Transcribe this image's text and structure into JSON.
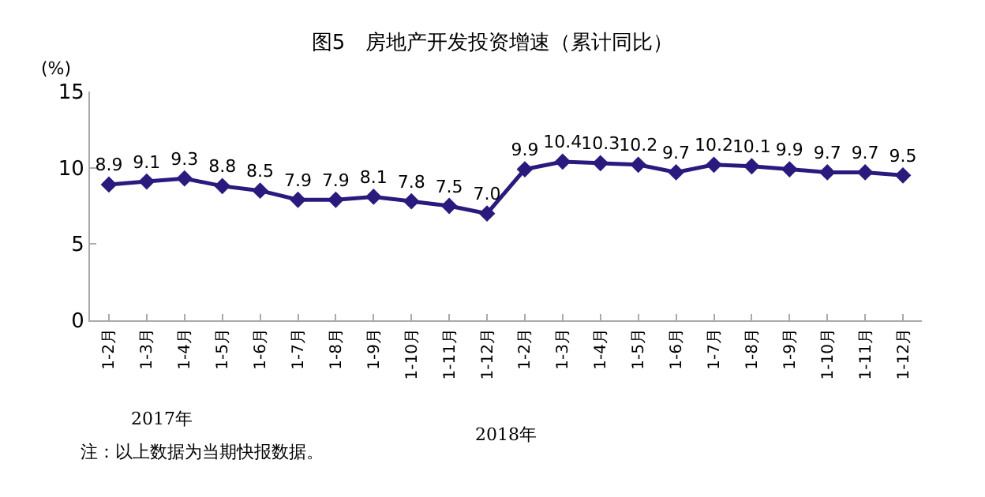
{
  "chart_data": {
    "type": "line",
    "title": "图5　房地产开发投资增速（累计同比）",
    "ylabel": "(%)",
    "categories": [
      "1-2月",
      "1-3月",
      "1-4月",
      "1-5月",
      "1-6月",
      "1-7月",
      "1-8月",
      "1-9月",
      "1-10月",
      "1-11月",
      "1-12月",
      "1-2月",
      "1-3月",
      "1-4月",
      "1-5月",
      "1-6月",
      "1-7月",
      "1-8月",
      "1-9月",
      "1-10月",
      "1-11月",
      "1-12月"
    ],
    "series": [
      {
        "color": "#2b1a7e",
        "values": [
          8.9,
          9.1,
          9.3,
          8.8,
          8.5,
          7.9,
          7.9,
          8.1,
          7.8,
          7.5,
          7.0,
          9.9,
          10.4,
          10.3,
          10.2,
          9.7,
          10.2,
          10.1,
          9.9,
          9.7,
          9.7,
          9.5
        ]
      }
    ],
    "value_labels": [
      "8.9",
      "9.1",
      "9.3",
      "8.8",
      "8.5",
      "7.9",
      "7.9",
      "8.1",
      "7.8",
      "7.5",
      "7.0",
      "9.9",
      "10.4",
      "10.3",
      "10.2",
      "9.7",
      "10.2",
      "10.1",
      "9.9",
      "9.7",
      "9.7",
      "9.5"
    ],
    "ylim": [
      0,
      15
    ],
    "yticks": [
      0,
      5,
      10,
      15
    ],
    "marker": "diamond",
    "line_style": "solid",
    "annotations": [
      "2017年",
      "2018年",
      "注：以上数据为当期快报数据。"
    ]
  }
}
